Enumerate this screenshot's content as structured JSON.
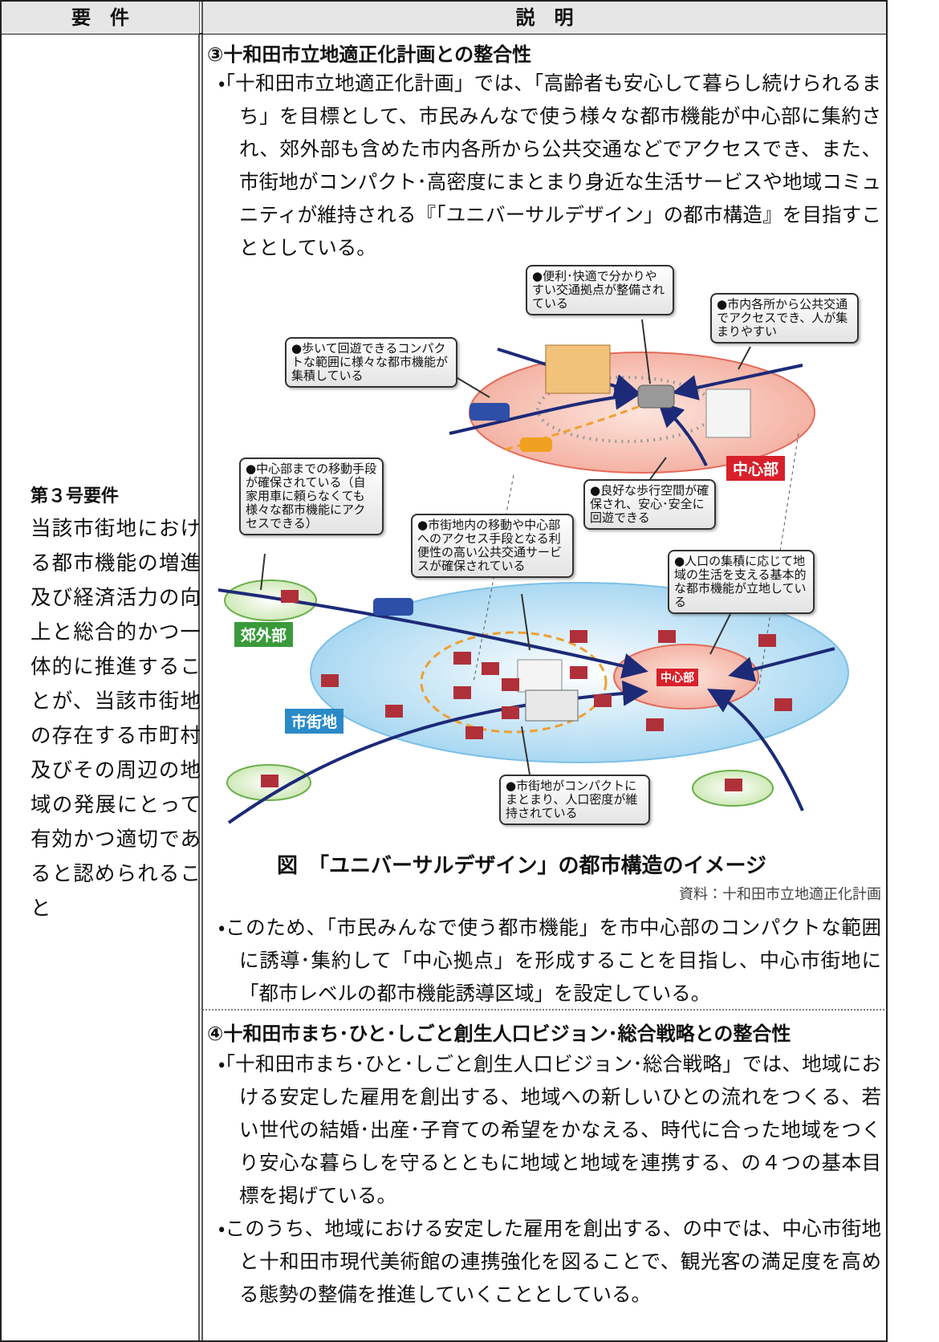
{
  "table": {
    "header": [
      "要　件",
      "説　明"
    ],
    "requirement": {
      "title": "第３号要件",
      "text": "当該市街地における都市機能の増進及び経済活力の向上と総合的かつ一体的に推進することが、当該市街地の存在する市町村及びその周辺の地域の発展にとって有効かつ適切であると認められること"
    },
    "sections": [
      {
        "heading": "③十和田市立地適正化計画との整合性",
        "paragraphs": [
          "・「十和田市立地適正化計画」では、「高齢者も安心して暮らし続けられるまち」を目標として、市民みんなで使う様々な都市機能が中心部に集約され、郊外部も含めた市内各所から公共交通などでアクセスでき、また、市街地がコンパクト･高密度にまとまり身近な生活サービスや地域コミュニティが維持される『「ユニバーサルデザイン」の都市構造』を目指すこととしている。",
          "・このため、「市民みんなで使う都市機能」を市中心部のコンパクトな範囲に誘導･集約して「中心拠点」を形成することを目指し、中心市街地に「都市レベルの都市機能誘導区域」を設定している。"
        ]
      },
      {
        "heading": "④十和田市まち･ひと･しごと創生人口ビジョン･総合戦略との整合性",
        "paragraphs": [
          "・「十和田市まち･ひと･しごと創生人口ビジョン･総合戦略」では、地域における安定した雇用を創出する、地域への新しいひとの流れをつくる、若い世代の結婚･出産･子育ての希望をかなえる、時代に合った地域をつくり安心な暮らしを守るとともに地域と地域を連携する、の４つの基本目標を掲げている。",
          "・このうち、地域における安定した雇用を創出する、の中では、中心市街地と十和田市現代美術館の連携強化を図ることで、観光客の満足度を高める態勢の整備を推進していくこととしている。"
        ]
      }
    ],
    "figure": {
      "callouts": [
        "●便利･快適で分かりやすい交通拠点が整備されている",
        "●市内各所から公共交通でアクセスでき、人が集まりやすい",
        "●歩いて回遊できるコンパクトな範囲に様々な都市機能が集積している",
        "●中心部までの移動手段が確保されている（自家用車に頼らなくても様々な都市機能にアクセスできる）",
        "●良好な歩行空間が確保され、安心･安全に回遊できる",
        "●市街地内の移動や中心部へのアクセス手段となる利便性の高い公共交通サービスが確保されている",
        "●人口の集積に応じて地域の生活を支える基本的な都市機能が立地している",
        "●市街地がコンパクトにまとまり、人口密度が維持されている"
      ],
      "labels": [
        "中心部",
        "郊外部",
        "市街地",
        "中心部"
      ],
      "caption": "図　「ユニバーサルデザイン」の都市構造のイメージ",
      "source": "資料：十和田市立地適正化計画"
    }
  }
}
